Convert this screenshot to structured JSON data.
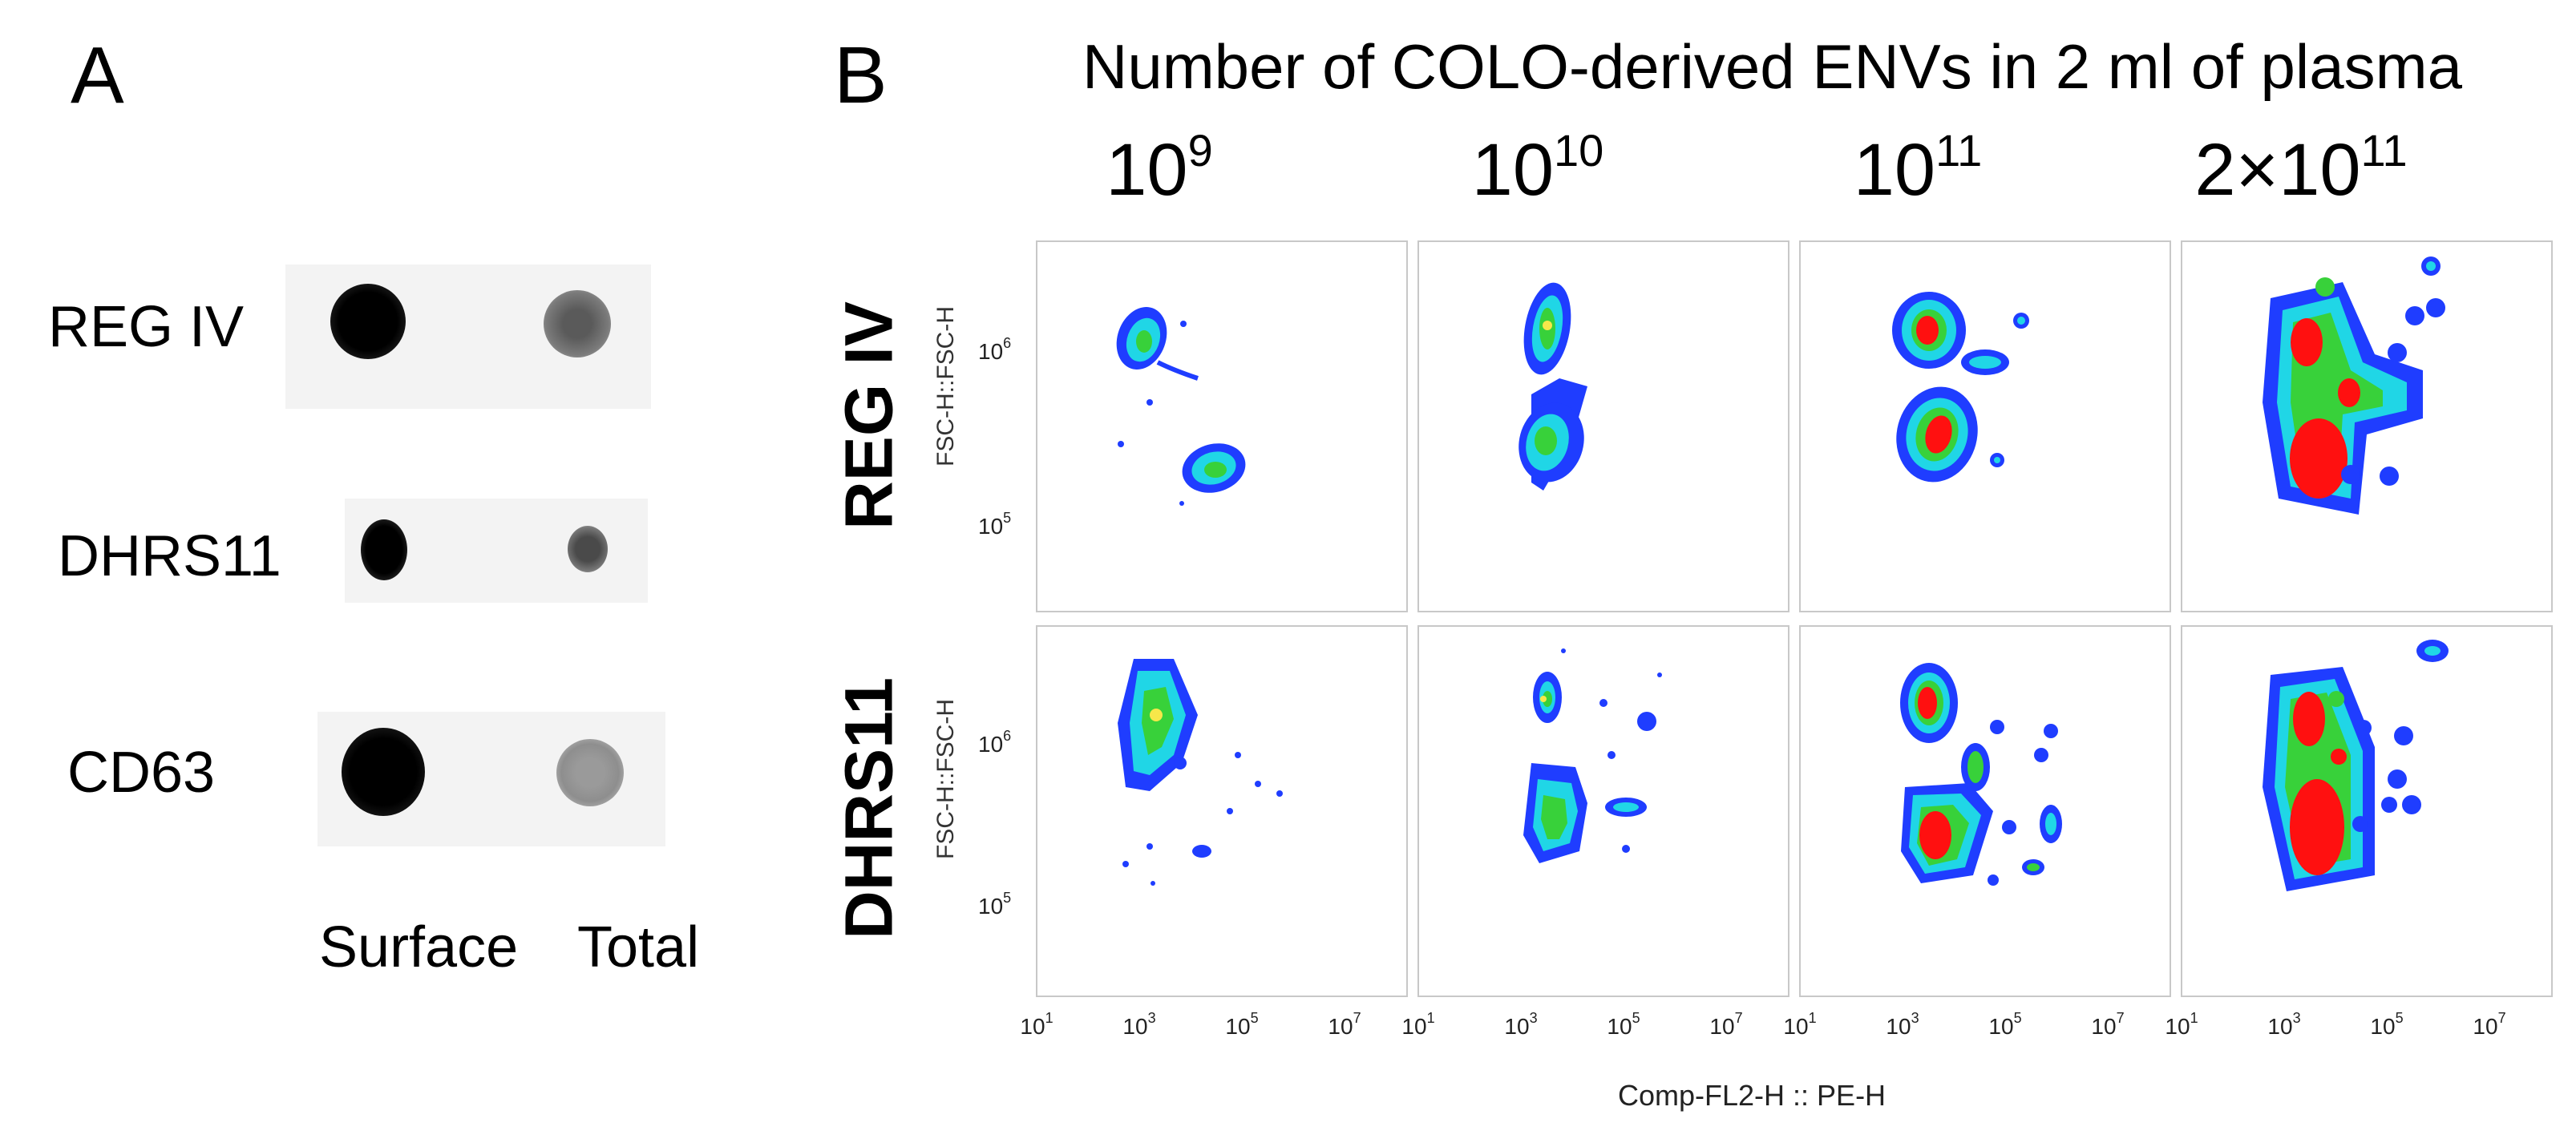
{
  "panel_a": {
    "letter": "A",
    "rows": [
      {
        "label": "REG IV"
      },
      {
        "label": "DHRS11"
      },
      {
        "label": "CD63"
      }
    ],
    "columns": [
      "Surface",
      "Total"
    ]
  },
  "panel_b": {
    "letter": "B",
    "title": "Number of COLO-derived ENVs in 2 ml of plasma",
    "column_headers": [
      {
        "base": "10",
        "exp": "9"
      },
      {
        "base": "10",
        "exp": "10"
      },
      {
        "base": "10",
        "exp": "11"
      },
      {
        "base": "2×10",
        "exp": "11"
      }
    ],
    "row_labels": [
      "REG IV",
      "DHRS11"
    ],
    "y_axis_label": "FSC-H::FSC-H",
    "y_ticks": [
      {
        "base": "10",
        "exp": "6"
      },
      {
        "base": "10",
        "exp": "5"
      }
    ],
    "x_ticks": [
      {
        "base": "10",
        "exp": "1"
      },
      {
        "base": "10",
        "exp": "3"
      },
      {
        "base": "10",
        "exp": "5"
      },
      {
        "base": "10",
        "exp": "7"
      }
    ],
    "x_axis_label": "Comp-FL2-H :: PE-H",
    "colors": {
      "low": "#1f3dff",
      "mid": "#20d6e6",
      "high": "#38d13a",
      "peak": "#ff1010"
    }
  }
}
